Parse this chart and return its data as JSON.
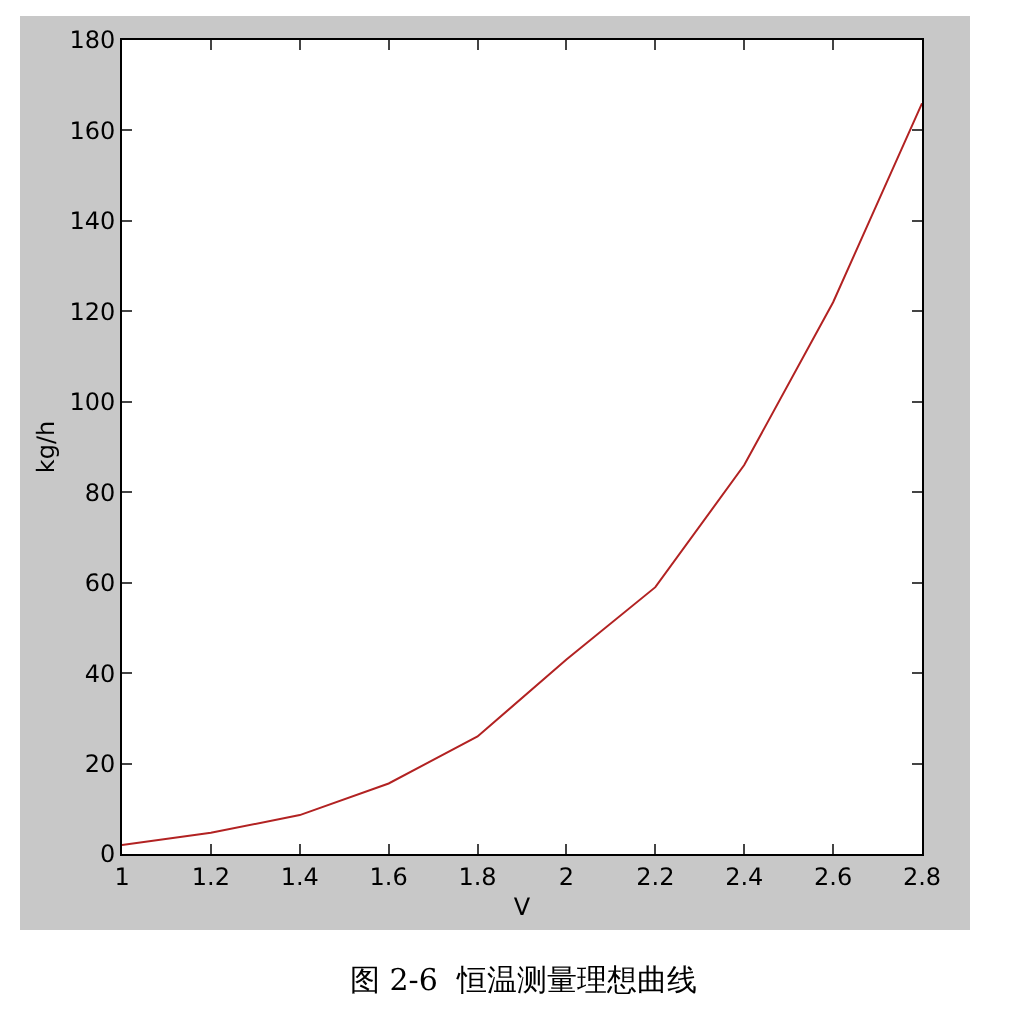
{
  "chart_data": {
    "type": "line",
    "xlabel": "V",
    "ylabel": "kg/h",
    "annotations": [
      "图 2-6  恒温测量理想曲线"
    ],
    "x": [
      1,
      1.2,
      1.4,
      1.6,
      1.8,
      2,
      2.2,
      2.4,
      2.6,
      2.8
    ],
    "series": [
      {
        "color": "#b22222",
        "values": [
          2,
          4.7,
          8.6,
          15.6,
          26,
          43,
          59,
          86,
          122,
          166
        ]
      }
    ],
    "xlim": [
      1,
      2.8
    ],
    "xticks": [
      1,
      1.2,
      1.4,
      1.6,
      1.8,
      2,
      2.2,
      2.4,
      2.6,
      2.8
    ],
    "ylim": [
      0,
      180
    ],
    "yticks": [
      0,
      20,
      40,
      60,
      80,
      100,
      120,
      140,
      160,
      180
    ],
    "grid": false,
    "marker": "none",
    "line_style": "solid"
  }
}
